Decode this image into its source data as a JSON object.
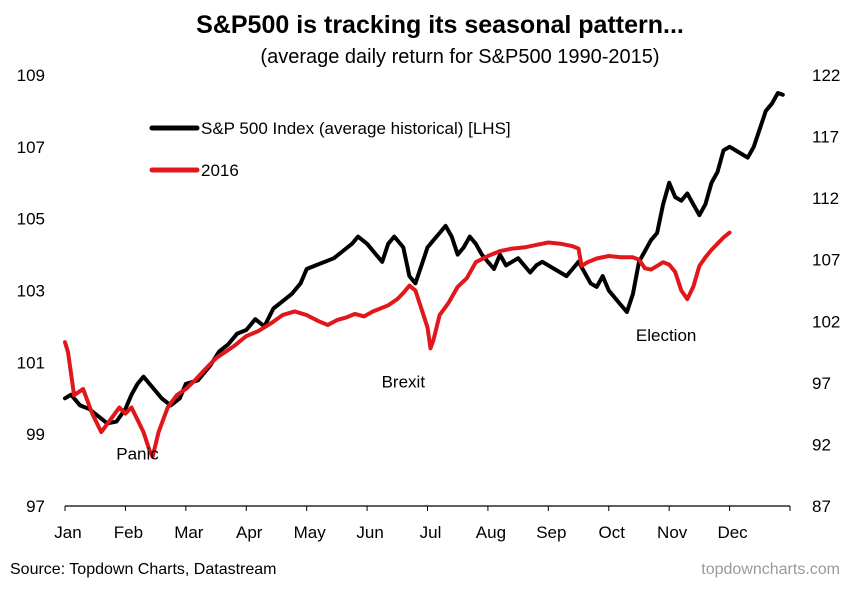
{
  "chart_data": {
    "type": "line",
    "title": "S&P500 is tracking its seasonal pattern...",
    "subtitle": "(average daily return for S&P500 1990-2015)",
    "source": "Source: Topdown Charts, Datastream",
    "watermark": "topdowncharts.com",
    "xlabel": "",
    "ylabel": "",
    "grid": false,
    "legend_position": "top-left",
    "x_range": [
      0,
      12
    ],
    "months": [
      "Jan",
      "Feb",
      "Mar",
      "Apr",
      "May",
      "Jun",
      "Jul",
      "Aug",
      "Sep",
      "Oct",
      "Nov",
      "Dec"
    ],
    "y_left": {
      "ylim": [
        97,
        109
      ],
      "ticks": [
        97,
        99,
        101,
        103,
        105,
        107,
        109
      ]
    },
    "y_right": {
      "ylim": [
        87,
        122
      ],
      "ticks": [
        87,
        92,
        97,
        102,
        107,
        112,
        117,
        122
      ]
    },
    "annotations": [
      {
        "text": "Panic",
        "x": 1.2,
        "y": 98.3
      },
      {
        "text": "Brexit",
        "x": 5.6,
        "y": 100.3
      },
      {
        "text": "Election",
        "x": 9.95,
        "y": 101.6
      }
    ],
    "series": [
      {
        "name": "S&P 500 Index (average historical) [LHS]",
        "axis": "left",
        "color": "#000000",
        "points": [
          [
            0,
            100
          ],
          [
            0.1,
            100.1
          ],
          [
            0.25,
            99.8
          ],
          [
            0.4,
            99.7
          ],
          [
            0.55,
            99.5
          ],
          [
            0.7,
            99.3
          ],
          [
            0.85,
            99.35
          ],
          [
            1.0,
            99.7
          ],
          [
            1.1,
            100.1
          ],
          [
            1.2,
            100.4
          ],
          [
            1.3,
            100.6
          ],
          [
            1.45,
            100.3
          ],
          [
            1.6,
            100.0
          ],
          [
            1.75,
            99.8
          ],
          [
            1.9,
            100.0
          ],
          [
            2.0,
            100.4
          ],
          [
            2.2,
            100.5
          ],
          [
            2.4,
            100.9
          ],
          [
            2.55,
            101.3
          ],
          [
            2.7,
            101.5
          ],
          [
            2.85,
            101.8
          ],
          [
            3.0,
            101.9
          ],
          [
            3.15,
            102.2
          ],
          [
            3.3,
            102.0
          ],
          [
            3.45,
            102.5
          ],
          [
            3.6,
            102.7
          ],
          [
            3.75,
            102.9
          ],
          [
            3.9,
            103.2
          ],
          [
            4.0,
            103.6
          ],
          [
            4.15,
            103.7
          ],
          [
            4.3,
            103.8
          ],
          [
            4.45,
            103.9
          ],
          [
            4.6,
            104.1
          ],
          [
            4.75,
            104.3
          ],
          [
            4.85,
            104.5
          ],
          [
            5.0,
            104.3
          ],
          [
            5.15,
            104.0
          ],
          [
            5.25,
            103.8
          ],
          [
            5.35,
            104.3
          ],
          [
            5.45,
            104.5
          ],
          [
            5.6,
            104.2
          ],
          [
            5.7,
            103.4
          ],
          [
            5.8,
            103.2
          ],
          [
            5.9,
            103.7
          ],
          [
            6.0,
            104.2
          ],
          [
            6.1,
            104.4
          ],
          [
            6.2,
            104.6
          ],
          [
            6.3,
            104.8
          ],
          [
            6.4,
            104.5
          ],
          [
            6.5,
            104.0
          ],
          [
            6.6,
            104.2
          ],
          [
            6.7,
            104.5
          ],
          [
            6.8,
            104.3
          ],
          [
            6.9,
            104.0
          ],
          [
            7.0,
            103.8
          ],
          [
            7.1,
            103.6
          ],
          [
            7.2,
            104.0
          ],
          [
            7.3,
            103.7
          ],
          [
            7.4,
            103.8
          ],
          [
            7.5,
            103.9
          ],
          [
            7.6,
            103.7
          ],
          [
            7.7,
            103.5
          ],
          [
            7.8,
            103.7
          ],
          [
            7.9,
            103.8
          ],
          [
            8.0,
            103.7
          ],
          [
            8.1,
            103.6
          ],
          [
            8.2,
            103.5
          ],
          [
            8.3,
            103.4
          ],
          [
            8.4,
            103.6
          ],
          [
            8.5,
            103.8
          ],
          [
            8.6,
            103.5
          ],
          [
            8.7,
            103.2
          ],
          [
            8.8,
            103.1
          ],
          [
            8.9,
            103.4
          ],
          [
            9.0,
            103.0
          ],
          [
            9.1,
            102.8
          ],
          [
            9.2,
            102.6
          ],
          [
            9.3,
            102.4
          ],
          [
            9.4,
            102.9
          ],
          [
            9.5,
            103.8
          ],
          [
            9.6,
            104.1
          ],
          [
            9.7,
            104.4
          ],
          [
            9.8,
            104.6
          ],
          [
            9.9,
            105.4
          ],
          [
            10.0,
            106.0
          ],
          [
            10.1,
            105.6
          ],
          [
            10.2,
            105.5
          ],
          [
            10.3,
            105.7
          ],
          [
            10.4,
            105.4
          ],
          [
            10.5,
            105.1
          ],
          [
            10.6,
            105.4
          ],
          [
            10.7,
            106.0
          ],
          [
            10.8,
            106.3
          ],
          [
            10.9,
            106.9
          ],
          [
            11.0,
            107.0
          ],
          [
            11.1,
            106.9
          ],
          [
            11.2,
            106.8
          ],
          [
            11.3,
            106.7
          ],
          [
            11.4,
            107.0
          ],
          [
            11.5,
            107.5
          ],
          [
            11.6,
            108.0
          ],
          [
            11.7,
            108.2
          ],
          [
            11.8,
            108.5
          ],
          [
            11.88,
            108.45
          ]
        ]
      },
      {
        "name": "2016",
        "axis": "right",
        "color": "#e0171b",
        "points": [
          [
            0,
            100.3
          ],
          [
            0.05,
            99.5
          ],
          [
            0.15,
            96.0
          ],
          [
            0.3,
            96.5
          ],
          [
            0.45,
            94.5
          ],
          [
            0.6,
            93.0
          ],
          [
            0.75,
            94.0
          ],
          [
            0.9,
            95.0
          ],
          [
            1.0,
            94.5
          ],
          [
            1.1,
            95.0
          ],
          [
            1.2,
            94.0
          ],
          [
            1.3,
            93.0
          ],
          [
            1.4,
            91.5
          ],
          [
            1.45,
            91.0
          ],
          [
            1.55,
            93.0
          ],
          [
            1.7,
            95.0
          ],
          [
            1.85,
            96.0
          ],
          [
            2.0,
            96.5
          ],
          [
            2.15,
            97.2
          ],
          [
            2.3,
            98.0
          ],
          [
            2.5,
            99.0
          ],
          [
            2.65,
            99.5
          ],
          [
            2.8,
            100.0
          ],
          [
            3.0,
            100.8
          ],
          [
            3.2,
            101.2
          ],
          [
            3.4,
            101.8
          ],
          [
            3.6,
            102.5
          ],
          [
            3.8,
            102.8
          ],
          [
            4.0,
            102.5
          ],
          [
            4.2,
            102.0
          ],
          [
            4.35,
            101.7
          ],
          [
            4.5,
            102.1
          ],
          [
            4.65,
            102.3
          ],
          [
            4.8,
            102.6
          ],
          [
            4.95,
            102.4
          ],
          [
            5.1,
            102.8
          ],
          [
            5.2,
            103.0
          ],
          [
            5.35,
            103.3
          ],
          [
            5.5,
            103.8
          ],
          [
            5.6,
            104.3
          ],
          [
            5.7,
            104.9
          ],
          [
            5.8,
            104.5
          ],
          [
            5.9,
            103.0
          ],
          [
            6.0,
            101.5
          ],
          [
            6.05,
            99.8
          ],
          [
            6.1,
            100.5
          ],
          [
            6.2,
            102.5
          ],
          [
            6.35,
            103.5
          ],
          [
            6.5,
            104.8
          ],
          [
            6.65,
            105.5
          ],
          [
            6.8,
            106.8
          ],
          [
            7.0,
            107.3
          ],
          [
            7.2,
            107.7
          ],
          [
            7.4,
            107.9
          ],
          [
            7.6,
            108.0
          ],
          [
            7.8,
            108.2
          ],
          [
            8.0,
            108.4
          ],
          [
            8.2,
            108.3
          ],
          [
            8.4,
            108.1
          ],
          [
            8.5,
            107.9
          ],
          [
            8.55,
            106.5
          ],
          [
            8.65,
            106.8
          ],
          [
            8.8,
            107.1
          ],
          [
            9.0,
            107.3
          ],
          [
            9.2,
            107.2
          ],
          [
            9.4,
            107.2
          ],
          [
            9.5,
            107.0
          ],
          [
            9.6,
            106.3
          ],
          [
            9.7,
            106.2
          ],
          [
            9.8,
            106.5
          ],
          [
            9.9,
            106.8
          ],
          [
            10.0,
            106.6
          ],
          [
            10.1,
            106.0
          ],
          [
            10.2,
            104.5
          ],
          [
            10.3,
            103.8
          ],
          [
            10.4,
            104.8
          ],
          [
            10.5,
            106.5
          ],
          [
            10.6,
            107.2
          ],
          [
            10.7,
            107.8
          ],
          [
            10.8,
            108.3
          ],
          [
            10.9,
            108.8
          ],
          [
            11.0,
            109.2
          ]
        ]
      }
    ]
  }
}
